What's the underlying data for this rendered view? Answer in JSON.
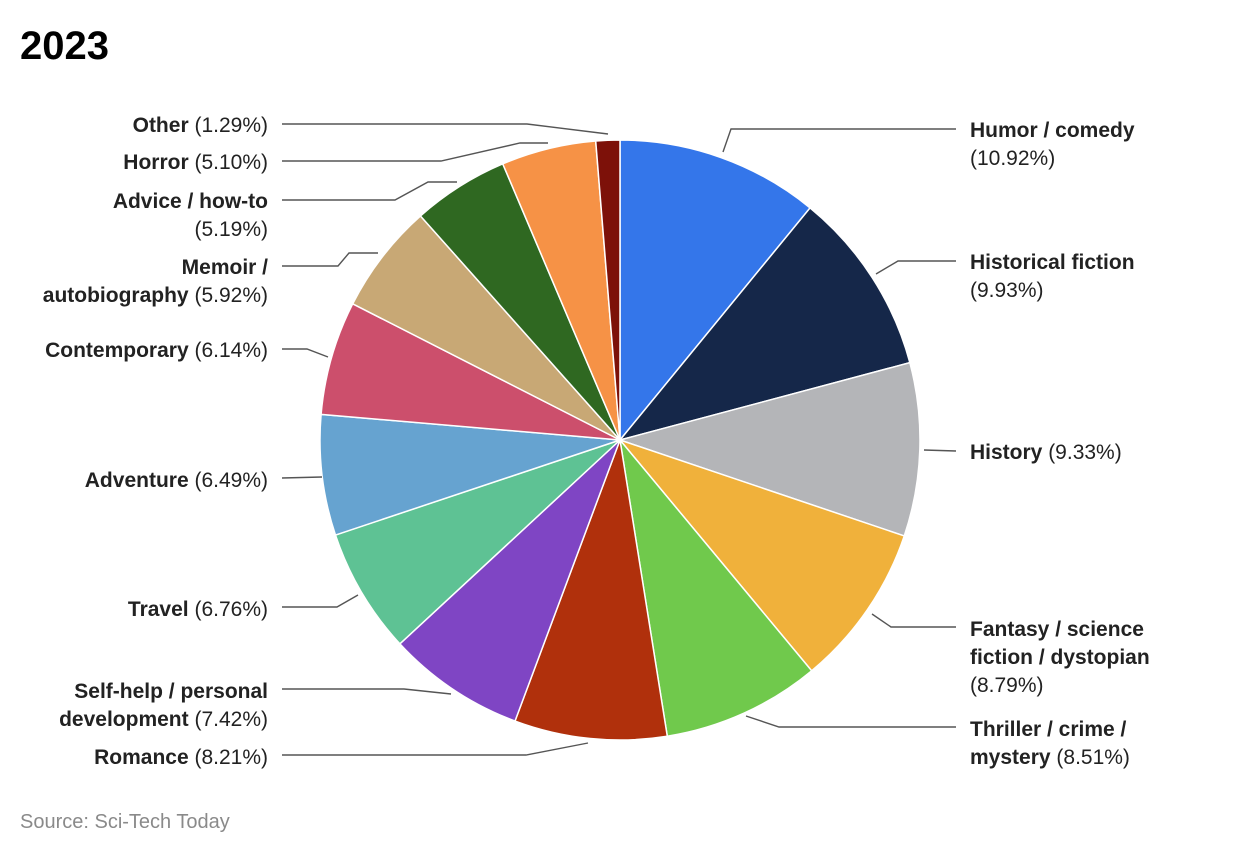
{
  "page": {
    "title": "2023",
    "source": "Source: Sci-Tech Today"
  },
  "chart_data": {
    "type": "pie",
    "title": "2023",
    "direction": "clockwise",
    "start": "12 o'clock",
    "slices": [
      {
        "label": "Humor / comedy",
        "value": 10.92,
        "display": "(10.92%)",
        "color": "#3476ea"
      },
      {
        "label": "Historical fiction",
        "value": 9.93,
        "display": "(9.93%)",
        "color": "#152749"
      },
      {
        "label": "History",
        "value": 9.33,
        "display": "(9.33%)",
        "color": "#b4b5b8"
      },
      {
        "label": "Fantasy / science fiction / dystopian",
        "value": 8.79,
        "display": "(8.79%)",
        "color": "#f0b13b"
      },
      {
        "label": "Thriller / crime / mystery",
        "value": 8.51,
        "display": "(8.51%)",
        "color": "#70c94c"
      },
      {
        "label": "Romance",
        "value": 8.21,
        "display": "(8.21%)",
        "color": "#b0300c"
      },
      {
        "label": "Self-help / personal development",
        "value": 7.42,
        "display": "(7.42%)",
        "color": "#7f45c4"
      },
      {
        "label": "Travel",
        "value": 6.76,
        "display": "(6.76%)",
        "color": "#5ec294"
      },
      {
        "label": "Adventure",
        "value": 6.49,
        "display": "(6.49%)",
        "color": "#66a3d0"
      },
      {
        "label": "Contemporary",
        "value": 6.14,
        "display": "(6.14%)",
        "color": "#cc4f6c"
      },
      {
        "label": "Memoir / autobiography",
        "value": 5.92,
        "display": "(5.92%)",
        "color": "#c8a875"
      },
      {
        "label": "Advice / how-to",
        "value": 5.19,
        "display": "(5.19%)",
        "color": "#2f6821"
      },
      {
        "label": "Horror",
        "value": 5.1,
        "display": "(5.10%)",
        "color": "#f69246"
      },
      {
        "label": "Other",
        "value": 1.29,
        "display": "(1.29%)",
        "color": "#7d1109"
      }
    ]
  }
}
